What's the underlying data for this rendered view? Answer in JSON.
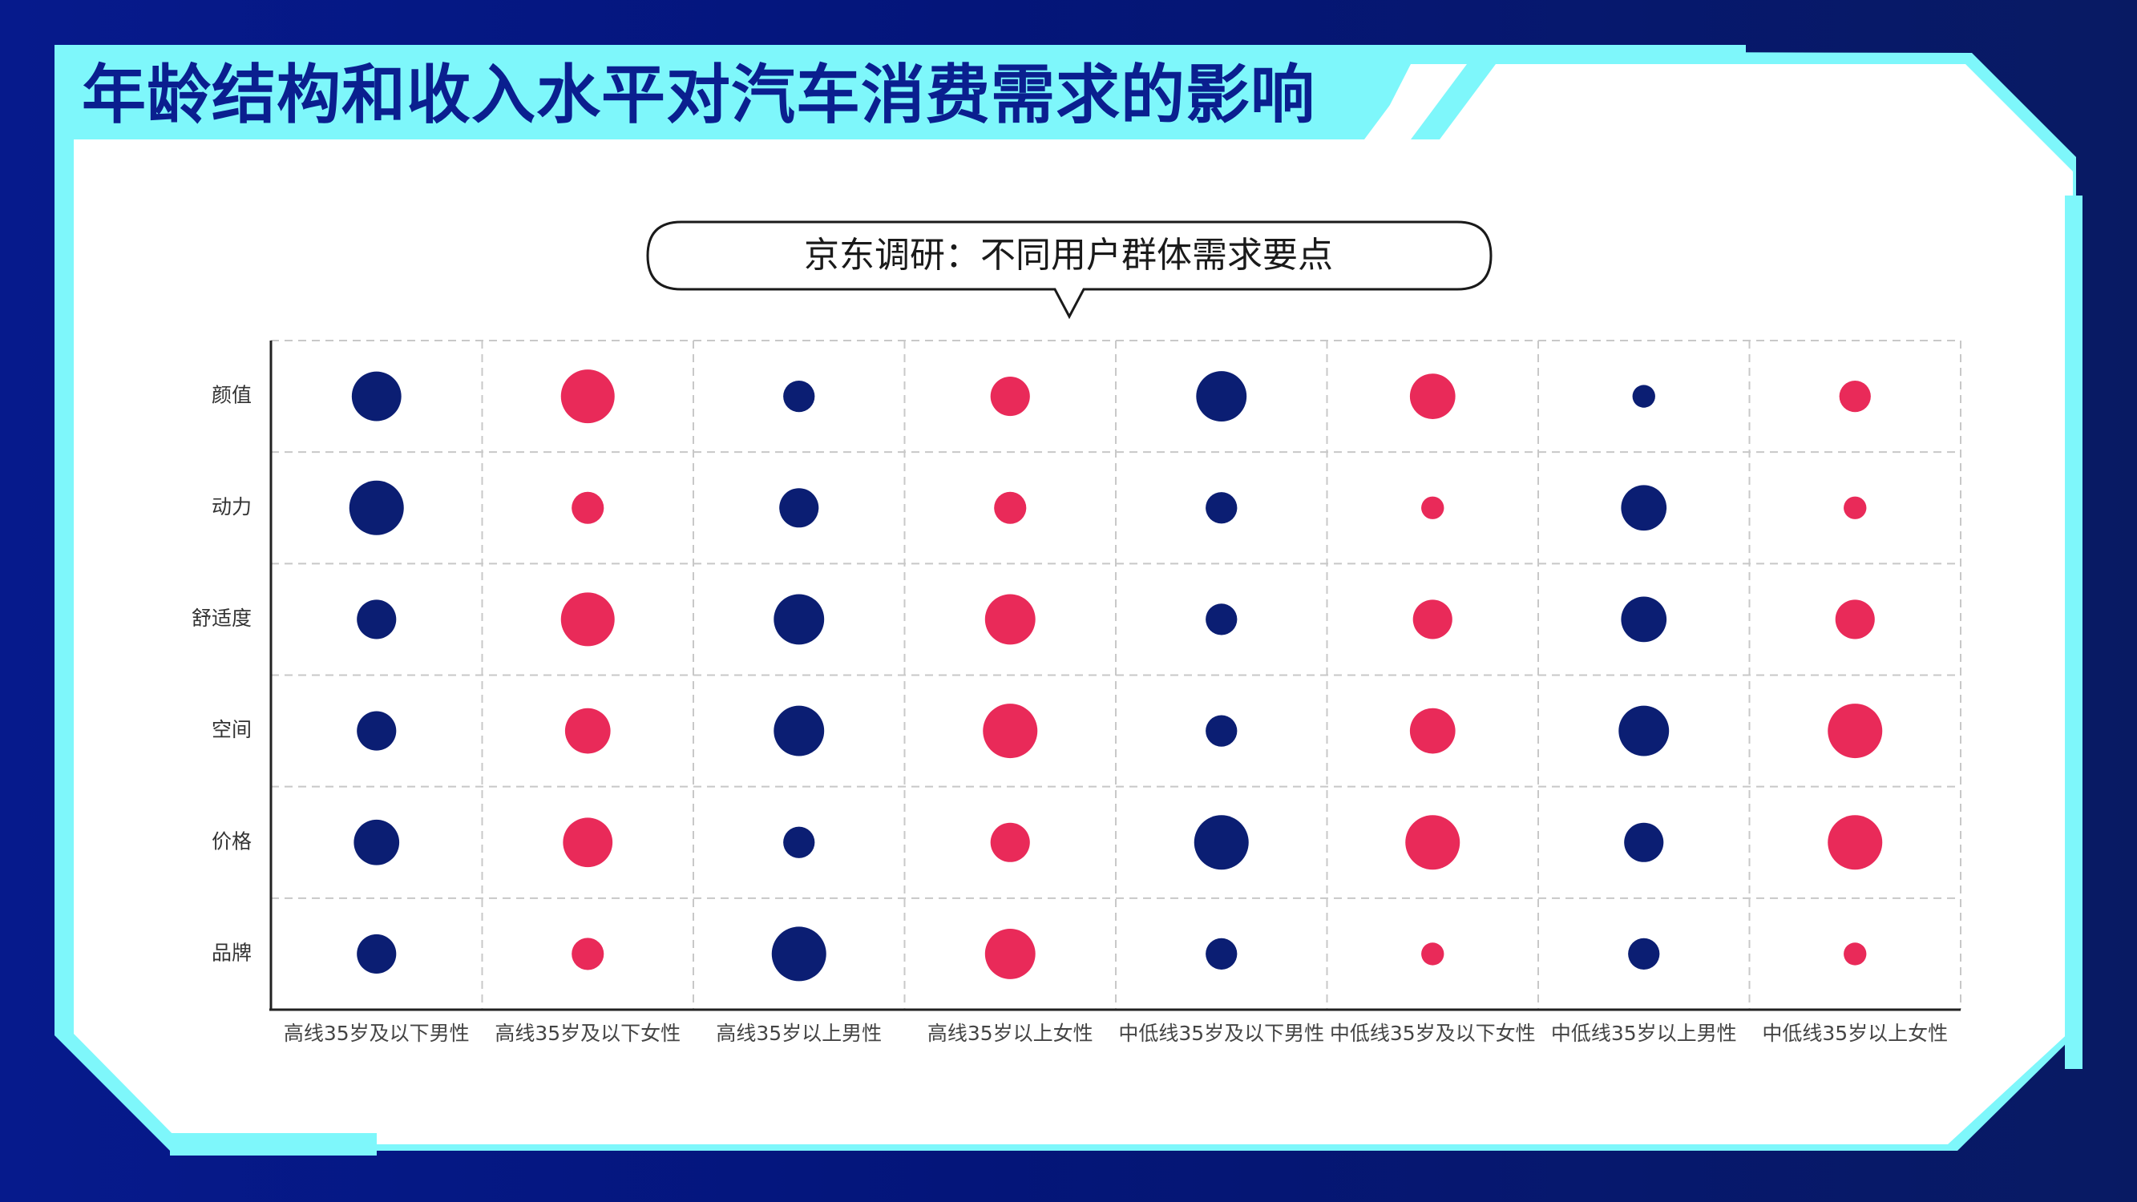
{
  "page": {
    "title": "年龄结构和收入水平对汽车消费需求的影响"
  },
  "colors": {
    "background": "#061a8c",
    "accent_cyan": "#7ef7fb",
    "title_text": "#0a1f8f",
    "male": "#0b1e73",
    "female": "#e92a59"
  },
  "chart_data": {
    "type": "bubble",
    "title": "京东调研：不同用户群体需求要点",
    "categories": [
      "高线35岁及以下男性",
      "高线35岁及以下女性",
      "高线35岁以上男性",
      "高线35岁以上女性",
      "中低线35岁及以下男性",
      "中低线35岁及以下女性",
      "中低线35岁以上男性",
      "中低线35岁以上女性"
    ],
    "rows": [
      "颜值",
      "动力",
      "舒适度",
      "空间",
      "价格",
      "品牌"
    ],
    "category_colors": [
      "#0b1e73",
      "#e92a59",
      "#0b1e73",
      "#e92a59",
      "#0b1e73",
      "#e92a59",
      "#0b1e73",
      "#e92a59"
    ],
    "values": [
      [
        57,
        67,
        23,
        36,
        59,
        48,
        12,
        23
      ],
      [
        69,
        24,
        36,
        24,
        23,
        12,
        48,
        12
      ],
      [
        36,
        67,
        59,
        59,
        23,
        36,
        48,
        36
      ],
      [
        36,
        48,
        59,
        69,
        23,
        48,
        59,
        69
      ],
      [
        48,
        57,
        23,
        36,
        69,
        69,
        36,
        69
      ],
      [
        36,
        24,
        69,
        59,
        23,
        12,
        23,
        12
      ]
    ],
    "grid": true,
    "grid_style": "dashed"
  }
}
